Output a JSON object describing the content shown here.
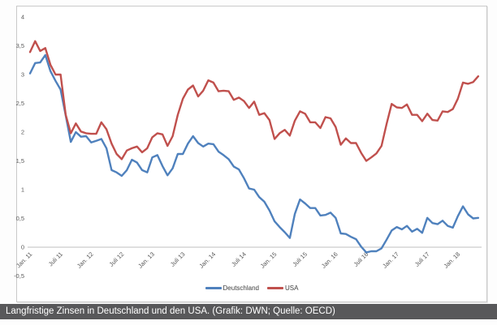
{
  "caption": {
    "text": "Langfristige Zinsen in Deutschland und den USA. (Grafik: DWN; Quelle: OECD)"
  },
  "colors": {
    "deutschland": "#4F81BD",
    "usa": "#C0504D",
    "axis_line": "#BFBFBF",
    "tick_label": "#595959",
    "chart_border": "#C9C9C9",
    "caption_bg": "#58585A",
    "caption_text": "#FFFFFF"
  },
  "chart_data": {
    "type": "line",
    "title": "",
    "xlabel": "",
    "ylabel": "",
    "x_frequency": "monthly",
    "x_start": "Jan. 11",
    "x_end": "Mai 18",
    "grid": false,
    "legend_position": "bottom-center",
    "ylim": [
      -0.5,
      4
    ],
    "y_tick_labels": [
      "4",
      "3,5",
      "3",
      "2,5",
      "2",
      "1,5",
      "1",
      "0,5",
      "0",
      "-0,5"
    ],
    "y_tick_values": [
      4,
      3.5,
      3,
      2.5,
      2,
      1.5,
      1,
      0.5,
      0,
      -0.5
    ],
    "x_tick_labels": [
      "Jan. 11",
      "Juli 11",
      "Jan. 12",
      "Juli 12",
      "Jan. 13",
      "Juli 13",
      "Jan. 14",
      "Juli 14",
      "Jan. 15",
      "Juli 15",
      "Jan. 16",
      "Juli 16",
      "Jan. 17",
      "Juli 17",
      "Jan. 18"
    ],
    "x_tick_month_indexes": [
      0,
      6,
      12,
      18,
      24,
      30,
      36,
      42,
      48,
      54,
      60,
      66,
      72,
      78,
      84
    ],
    "series": [
      {
        "name": "Deutschland",
        "color": "#4F81BD",
        "values": [
          3.02,
          3.2,
          3.21,
          3.34,
          3.06,
          2.89,
          2.74,
          2.29,
          1.83,
          2.0,
          1.92,
          1.93,
          1.82,
          1.85,
          1.88,
          1.72,
          1.34,
          1.3,
          1.24,
          1.34,
          1.52,
          1.47,
          1.34,
          1.3,
          1.56,
          1.6,
          1.41,
          1.25,
          1.37,
          1.62,
          1.62,
          1.8,
          1.93,
          1.81,
          1.75,
          1.8,
          1.79,
          1.66,
          1.6,
          1.53,
          1.4,
          1.35,
          1.2,
          1.02,
          1.0,
          0.87,
          0.79,
          0.64,
          0.45,
          0.35,
          0.26,
          0.16,
          0.58,
          0.83,
          0.76,
          0.68,
          0.68,
          0.55,
          0.56,
          0.6,
          0.51,
          0.24,
          0.23,
          0.18,
          0.14,
          0.01,
          -0.09,
          -0.07,
          -0.07,
          -0.02,
          0.13,
          0.29,
          0.35,
          0.31,
          0.37,
          0.27,
          0.32,
          0.25,
          0.51,
          0.42,
          0.4,
          0.46,
          0.37,
          0.34,
          0.54,
          0.71,
          0.57,
          0.5,
          0.51
        ]
      },
      {
        "name": "USA",
        "color": "#C0504D",
        "values": [
          3.39,
          3.58,
          3.41,
          3.46,
          3.17,
          3.0,
          3.0,
          2.3,
          1.98,
          2.15,
          2.01,
          1.98,
          1.97,
          1.97,
          2.17,
          2.05,
          1.8,
          1.62,
          1.53,
          1.68,
          1.72,
          1.75,
          1.65,
          1.72,
          1.91,
          1.98,
          1.96,
          1.76,
          1.93,
          2.3,
          2.58,
          2.74,
          2.81,
          2.62,
          2.72,
          2.9,
          2.86,
          2.71,
          2.72,
          2.71,
          2.56,
          2.6,
          2.54,
          2.42,
          2.53,
          2.3,
          2.33,
          2.21,
          1.88,
          1.98,
          2.04,
          1.94,
          2.2,
          2.36,
          2.32,
          2.17,
          2.17,
          2.07,
          2.26,
          2.24,
          2.09,
          1.78,
          1.89,
          1.81,
          1.81,
          1.64,
          1.5,
          1.56,
          1.63,
          1.76,
          2.14,
          2.49,
          2.43,
          2.42,
          2.48,
          2.3,
          2.3,
          2.19,
          2.32,
          2.21,
          2.2,
          2.36,
          2.35,
          2.4,
          2.58,
          2.86,
          2.84,
          2.87,
          2.97
        ]
      }
    ]
  }
}
